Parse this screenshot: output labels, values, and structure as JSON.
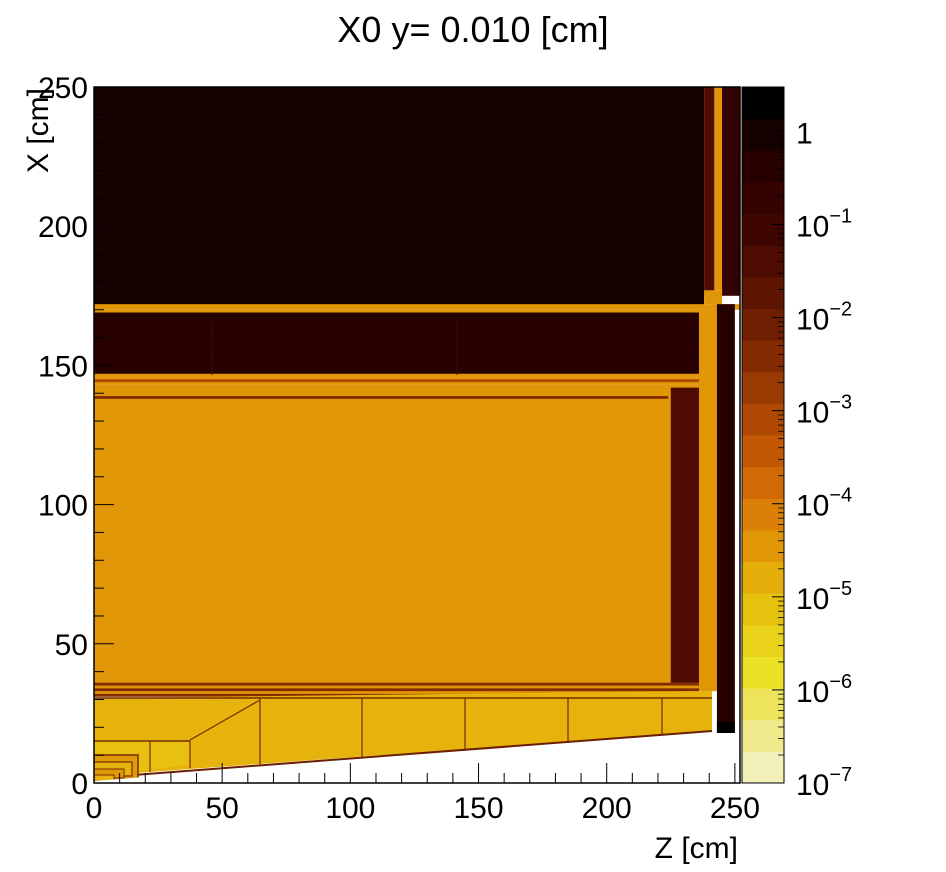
{
  "chart_data": {
    "type": "heatmap",
    "title": "X0 y=  0.010 [cm]",
    "xlabel": "Z [cm]",
    "ylabel": "X [cm]",
    "xlim": [
      0,
      252
    ],
    "ylim": [
      0,
      250
    ],
    "x_ticks": [
      0,
      50,
      100,
      150,
      200,
      250
    ],
    "y_ticks": [
      0,
      50,
      100,
      150,
      200,
      250
    ],
    "z_scale": "log",
    "zlim": [
      1e-07,
      3
    ],
    "z_ticks": [
      {
        "base": "10",
        "exp": "−7",
        "value": 1e-07
      },
      {
        "base": "10",
        "exp": "−6",
        "value": 1e-06
      },
      {
        "base": "10",
        "exp": "−5",
        "value": 1e-05
      },
      {
        "base": "10",
        "exp": "−4",
        "value": 0.0001
      },
      {
        "base": "10",
        "exp": "−3",
        "value": 0.001
      },
      {
        "base": "10",
        "exp": "−2",
        "value": 0.01
      },
      {
        "base": "10",
        "exp": "−1",
        "value": 0.1
      },
      {
        "base": "1",
        "exp": "",
        "value": 1
      }
    ],
    "palette": [
      "#f3efb8",
      "#f0ea8c",
      "#ede45c",
      "#ebe126",
      "#e9d219",
      "#e6c10e",
      "#e4ad0a",
      "#e09607",
      "#db7f06",
      "#d16a05",
      "#c25804",
      "#ae4803",
      "#983a02",
      "#832c01",
      "#6f1f01",
      "#5d1401",
      "#4d0b01",
      "#3f0501",
      "#330201",
      "#270100",
      "#160000",
      "#000000"
    ],
    "regions": [
      {
        "x0": 0,
        "x1": 238,
        "y0": 171,
        "y1": 250,
        "z": 1.0
      },
      {
        "x0": 238,
        "x1": 242,
        "y0": 175,
        "y1": 250,
        "z": 0.05
      },
      {
        "x0": 242,
        "x1": 245,
        "y0": 177,
        "y1": 250,
        "z": 3e-05
      },
      {
        "x0": 245,
        "x1": 252,
        "y0": 175,
        "y1": 250,
        "z": 0.2
      },
      {
        "x0": 0,
        "x1": 252,
        "y0": 170,
        "y1": 172,
        "z": 3e-05
      },
      {
        "x0": 238,
        "x1": 245,
        "y0": 172,
        "y1": 177,
        "z": 3e-05
      },
      {
        "x0": 0,
        "x1": 243,
        "y0": 146,
        "y1": 170,
        "z": 3e-05
      },
      {
        "x0": 0,
        "x1": 236,
        "y0": 147,
        "y1": 169,
        "z": 0.5
      },
      {
        "x0": 0,
        "x1": 243,
        "y0": 143,
        "y1": 146,
        "z": 3e-05
      },
      {
        "x0": 0,
        "x1": 236,
        "y0": 144,
        "y1": 145,
        "z": 0.001
      },
      {
        "x0": 0,
        "x1": 236,
        "y0": 34,
        "y1": 143,
        "z": 3e-05
      },
      {
        "x0": 0,
        "x1": 225,
        "y0": 36,
        "y1": 140,
        "z": 5e-05
      },
      {
        "x0": 0,
        "x1": 224,
        "y0": 138,
        "y1": 139,
        "z": 0.003
      },
      {
        "x0": 225,
        "x1": 236,
        "y0": 33,
        "y1": 142,
        "z": 0.05
      },
      {
        "x0": 236,
        "x1": 243,
        "y0": 33,
        "y1": 170,
        "z": 3e-05
      },
      {
        "x0": 243,
        "x1": 250,
        "y0": 10,
        "y1": 172,
        "z": 0.3
      },
      {
        "x0": 243,
        "x1": 250,
        "y0": 10,
        "y1": 22,
        "z": 2.0
      },
      {
        "x0": 0,
        "x1": 236,
        "y0": 31,
        "y1": 36,
        "z": 3e-05
      },
      {
        "x0": 0,
        "x1": 236,
        "y0": 33,
        "y1": 34,
        "z": 0.003
      },
      {
        "x0": 0,
        "x1": 236,
        "y0": 35,
        "y1": 36,
        "z": 0.003
      },
      {
        "x0": 0,
        "x1": 236,
        "y0": 31,
        "y1": 32,
        "z": 0.003
      }
    ]
  }
}
